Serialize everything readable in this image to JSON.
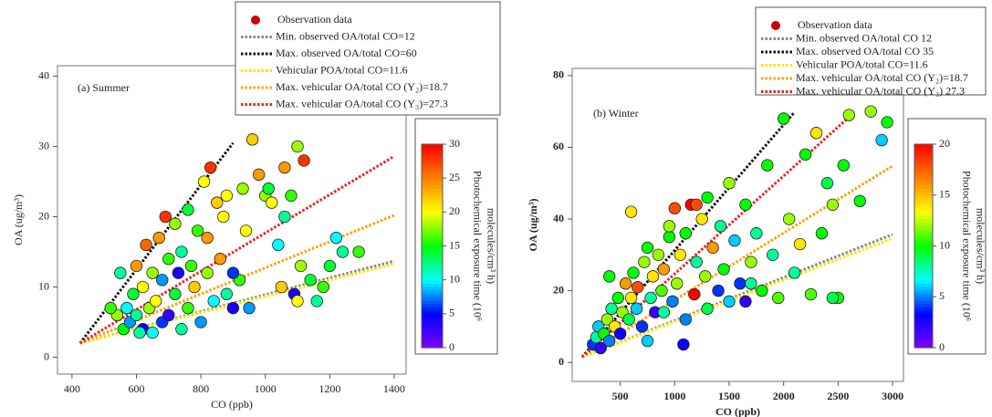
{
  "chart_data": [
    {
      "type": "scatter",
      "title": "(a) Summer",
      "x_label": "CO (ppb)",
      "y_label": "OA (ug/m³)",
      "xlim": [
        355,
        1437
      ],
      "ylim": [
        -2.4,
        41.5
      ],
      "xticks": [
        400,
        600,
        800,
        1000,
        1200,
        1400
      ],
      "yticks": [
        0,
        10,
        20,
        30,
        40
      ],
      "series": [
        {
          "name": "Observation data",
          "marker": "circle",
          "color": "#cc0000",
          "x": [
            560,
            580,
            600,
            620,
            640,
            650,
            660,
            680,
            700,
            720,
            740,
            760,
            780,
            800,
            820,
            840,
            860,
            880,
            900,
            920,
            940,
            960,
            980,
            1000,
            1020,
            1040,
            1060,
            1080,
            1100,
            1120,
            1140,
            1160,
            1180,
            1200,
            1220,
            1240,
            1290,
            1090,
            1100,
            950,
            900,
            870,
            850,
            830,
            810,
            790,
            760,
            740,
            720,
            700,
            690,
            670,
            650,
            630,
            620,
            600,
            590,
            570,
            550,
            540,
            520,
            610,
            680,
            730,
            770,
            820,
            880,
            930,
            1010,
            1060,
            1110,
            1050
          ],
          "values": [
            4,
            5,
            6,
            4,
            7,
            3.5,
            8,
            5,
            6,
            9,
            4,
            7,
            10,
            5,
            12,
            8,
            14,
            9,
            7,
            11,
            18,
            31,
            26,
            23,
            22,
            16,
            27,
            23,
            30,
            28,
            11,
            8,
            10,
            13,
            17,
            15,
            15,
            9,
            8,
            7,
            12,
            20,
            22,
            27,
            25,
            18,
            21,
            15,
            19,
            14,
            20,
            17,
            12,
            16,
            10,
            13,
            9,
            7,
            12,
            6,
            7,
            3.5,
            11,
            12,
            13,
            17,
            23,
            24,
            24,
            20,
            13,
            10
          ],
          "exposure": [
            15,
            8,
            12,
            5,
            18,
            10,
            20,
            6,
            3,
            14,
            12,
            16,
            22,
            8,
            18,
            10,
            24,
            12,
            4,
            16,
            20,
            22,
            24,
            18,
            20,
            10,
            24,
            16,
            18,
            28,
            14,
            12,
            16,
            14,
            10,
            12,
            16,
            4,
            20,
            8,
            6,
            20,
            22,
            28,
            20,
            16,
            14,
            12,
            18,
            16,
            28,
            24,
            18,
            26,
            20,
            24,
            14,
            10,
            12,
            18,
            16,
            12,
            8,
            4,
            16,
            24,
            20,
            18,
            14,
            12,
            18,
            22
          ]
        },
        {
          "name": "Min. observed OA/total CO=12",
          "line": "dotted",
          "color": "#888888",
          "x": [
            425,
            1400
          ],
          "values": [
            2,
            13.7
          ]
        },
        {
          "name": "Max. observed OA/total CO=60",
          "line": "dotted",
          "color": "#111111",
          "x": [
            425,
            900
          ],
          "values": [
            2,
            30.5
          ]
        },
        {
          "name": "Vehicular POA/total CO=11.6",
          "line": "dotted",
          "color": "#f5e600",
          "x": [
            425,
            1400
          ],
          "values": [
            2,
            13.3
          ]
        },
        {
          "name": "Max. vehicular OA/total CO (Y₂)=18.7",
          "line": "dotted",
          "color": "#ffa000",
          "x": [
            425,
            1400
          ],
          "values": [
            2,
            20.2
          ]
        },
        {
          "name": "Max. vehicular OA/total CO (Y₃)=27.3",
          "line": "dotted",
          "color": "#ee2020",
          "x": [
            425,
            1400
          ],
          "values": [
            2,
            28.6
          ]
        }
      ],
      "colorbar": {
        "label": [
          "Photochemical exposure time (10⁶",
          "molecules/cm³ h)"
        ],
        "lim": [
          0,
          30
        ],
        "ticks": [
          0,
          5,
          10,
          15,
          20,
          25,
          30
        ],
        "colormap": [
          "#7f00ff",
          "#0000ff",
          "#00ffff",
          "#00ff00",
          "#ffff00",
          "#ff8000",
          "#ff0000"
        ]
      }
    },
    {
      "type": "scatter",
      "title": "(b) Winter",
      "x_label": "CO (ppb)",
      "y_label": "OA (ug/m³)",
      "xlim": [
        59,
        3100
      ],
      "ylim": [
        -5.3,
        82
      ],
      "xticks": [
        500,
        1000,
        1500,
        2000,
        2500,
        3000
      ],
      "yticks": [
        0,
        20,
        40,
        60,
        80
      ],
      "series": [
        {
          "name": "Observation data",
          "marker": "circle",
          "color": "#cc0000",
          "x": [
            250,
            280,
            300,
            320,
            350,
            380,
            400,
            420,
            450,
            480,
            500,
            520,
            550,
            580,
            600,
            620,
            650,
            660,
            700,
            720,
            750,
            780,
            800,
            820,
            850,
            880,
            900,
            950,
            980,
            1000,
            1020,
            1050,
            1080,
            1100,
            1150,
            1180,
            1200,
            1250,
            1280,
            1300,
            1350,
            1400,
            1420,
            1450,
            1500,
            1550,
            1600,
            1650,
            1700,
            1750,
            1800,
            1850,
            1900,
            1950,
            2000,
            2050,
            2100,
            2150,
            2200,
            2250,
            2300,
            2350,
            2400,
            2450,
            2500,
            2550,
            2600,
            2700,
            2800,
            2900,
            2950,
            750,
            900,
            1100,
            1300,
            1500,
            1700,
            600,
            1200,
            950,
            400,
            1650,
            2450
          ],
          "values": [
            5,
            7,
            10,
            4,
            8,
            12,
            6,
            15,
            10,
            18,
            8,
            14,
            22,
            12,
            18,
            25,
            15,
            21,
            10,
            28,
            32,
            18,
            24,
            14,
            30,
            20,
            26,
            35,
            17,
            43,
            22,
            30,
            5,
            36,
            44,
            19,
            28,
            40,
            24,
            46,
            32,
            20,
            38,
            26,
            50,
            34,
            22,
            44,
            28,
            36,
            20,
            55,
            30,
            18,
            68,
            40,
            25,
            33,
            58,
            19,
            64,
            36,
            50,
            44,
            18,
            55,
            69,
            45,
            70,
            62,
            67,
            6,
            14,
            12,
            15,
            17,
            22,
            42,
            44,
            38,
            24,
            17,
            18
          ],
          "exposure": [
            4,
            8,
            6,
            2,
            10,
            12,
            5,
            8,
            14,
            10,
            3,
            12,
            16,
            9,
            14,
            10,
            6,
            18,
            4,
            12,
            10,
            8,
            14,
            2,
            12,
            11,
            16,
            10,
            5,
            18,
            12,
            14,
            3,
            10,
            20,
            20,
            8,
            14,
            12,
            10,
            16,
            4,
            8,
            10,
            12,
            6,
            4,
            10,
            12,
            8,
            10,
            10,
            8,
            11,
            10,
            12,
            8,
            14,
            10,
            11,
            14,
            10,
            9,
            12,
            10,
            10,
            12,
            10,
            12,
            6,
            10,
            6,
            8,
            5,
            9,
            6,
            8,
            14,
            18,
            12,
            10,
            2,
            9
          ]
        },
        {
          "name": "Min. observed OA/total CO  12",
          "line": "dotted",
          "color": "#888888",
          "x": [
            150,
            3000
          ],
          "values": [
            1.5,
            35.7
          ]
        },
        {
          "name": "Max. observed OA/total CO  35",
          "line": "dotted",
          "color": "#111111",
          "x": [
            150,
            2100
          ],
          "values": [
            1.5,
            69.8
          ]
        },
        {
          "name": "Vehicular POA/total CO=11.6",
          "line": "dotted",
          "color": "#f5e600",
          "x": [
            150,
            3000
          ],
          "values": [
            1.5,
            34.6
          ]
        },
        {
          "name": "Max. vehicular OA/total CO (Y₂)=18.7",
          "line": "dotted",
          "color": "#ffa000",
          "x": [
            150,
            3000
          ],
          "values": [
            1.5,
            54.8
          ]
        },
        {
          "name": "Max. vehicular OA/total CO (Y₃)  27.3",
          "line": "dotted",
          "color": "#ee2020",
          "x": [
            150,
            2600
          ],
          "values": [
            1.5,
            68.4
          ]
        }
      ],
      "colorbar": {
        "label": [
          "Photochemical exposure time (10⁶",
          "molecules/cm³ h)"
        ],
        "lim": [
          0,
          20
        ],
        "ticks": [
          0,
          5,
          10,
          15,
          20
        ],
        "colormap": [
          "#7f00ff",
          "#0000ff",
          "#00ffff",
          "#00ff00",
          "#ffff00",
          "#ff8000",
          "#ff0000"
        ]
      }
    }
  ]
}
